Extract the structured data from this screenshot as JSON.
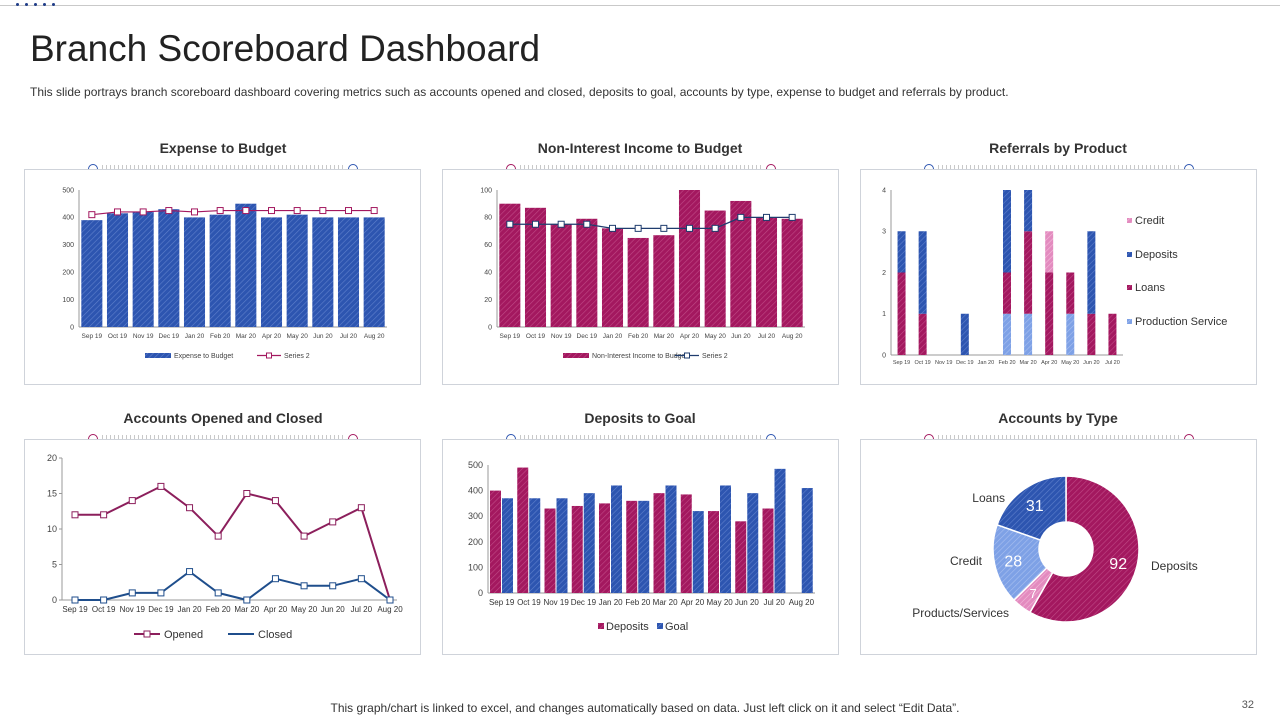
{
  "page": {
    "title": "Branch Scoreboard Dashboard",
    "subtitle": "This slide portrays branch scoreboard dashboard covering metrics such as accounts opened and closed, deposits to goal, accounts by type,  expense to budget and referrals by product.",
    "footer": "This graph/chart is linked to excel,  and changes automatically based on data. Just left click on it and select “Edit Data”.",
    "page_number": "32"
  },
  "colors": {
    "blue": "#2d55b0",
    "magenta": "#a3185f",
    "light_blue": "#7ea1e6",
    "pink": "#e38bbf",
    "navy": "#1f3c6e"
  },
  "panels": [
    {
      "title": "Expense to Budget"
    },
    {
      "title": "Non-Interest  Income to Budget"
    },
    {
      "title": "Referrals by Product"
    },
    {
      "title": "Accounts  Opened and Closed"
    },
    {
      "title": "Deposits  to Goal"
    },
    {
      "title": "Accounts  by Type"
    }
  ],
  "chart_data": [
    {
      "type": "bar",
      "title": "Expense to Budget",
      "categories": [
        "Sep 19",
        "Oct 19",
        "Nov 19",
        "Dec 19",
        "Jan 20",
        "Feb 20",
        "Mar 20",
        "Apr 20",
        "May 20",
        "Jun 20",
        "Jul 20",
        "Aug 20"
      ],
      "series": [
        {
          "name": "Expense to Budget",
          "kind": "bar",
          "values": [
            390,
            415,
            420,
            430,
            400,
            410,
            450,
            400,
            410,
            400,
            400,
            400
          ]
        },
        {
          "name": "Series 2",
          "kind": "line",
          "values": [
            410,
            420,
            420,
            425,
            420,
            425,
            425,
            425,
            425,
            425,
            425,
            425
          ]
        }
      ],
      "ylim": [
        0,
        500
      ],
      "yticks": [
        0,
        100,
        200,
        300,
        400,
        500
      ]
    },
    {
      "type": "bar",
      "title": "Non-Interest  Income to Budget",
      "categories": [
        "Sep 19",
        "Oct 19",
        "Nov 19",
        "Dec 19",
        "Jan 20",
        "Feb 20",
        "Mar 20",
        "Apr 20",
        "May 20",
        "Jun 20",
        "Jul 20",
        "Aug 20"
      ],
      "series": [
        {
          "name": "Non-Interest Income to Budget",
          "kind": "bar",
          "values": [
            90,
            87,
            75,
            79,
            72,
            65,
            67,
            100,
            85,
            92,
            80,
            79
          ]
        },
        {
          "name": "Series 2",
          "kind": "line",
          "values": [
            75,
            75,
            75,
            75,
            72,
            72,
            72,
            72,
            72,
            80,
            80,
            80
          ]
        }
      ],
      "ylim": [
        0,
        100
      ],
      "yticks": [
        0,
        20,
        40,
        60,
        80,
        100
      ]
    },
    {
      "type": "bar",
      "stacked": true,
      "title": "Referrals by Product",
      "categories": [
        "Sep 19",
        "Oct 19",
        "Nov 19",
        "Dec 19",
        "Jan 20",
        "Feb 20",
        "Mar 20",
        "Apr 20",
        "May 20",
        "Jun 20",
        "Jul 20"
      ],
      "series": [
        {
          "name": "Production Service",
          "values": [
            0,
            0,
            0,
            0,
            0,
            1,
            1,
            0,
            1,
            0,
            0
          ]
        },
        {
          "name": "Loans",
          "values": [
            2,
            1,
            0,
            0,
            0,
            1,
            2,
            2,
            1,
            1,
            1
          ]
        },
        {
          "name": "Deposits",
          "values": [
            1,
            2,
            0,
            1,
            0,
            2,
            1,
            0,
            0,
            2,
            0
          ]
        },
        {
          "name": "Credit",
          "values": [
            0,
            0,
            0,
            0,
            0,
            0,
            0,
            1,
            0,
            0,
            0
          ]
        }
      ],
      "legend": [
        "Credit",
        "Deposits",
        "Loans",
        "Production Service"
      ],
      "ylim": [
        0,
        4
      ],
      "yticks": [
        0,
        1,
        2,
        3,
        4
      ]
    },
    {
      "type": "line",
      "title": "Accounts  Opened and Closed",
      "categories": [
        "Sep 19",
        "Oct 19",
        "Nov 19",
        "Dec 19",
        "Jan 20",
        "Feb 20",
        "Mar 20",
        "Apr 20",
        "May 20",
        "Jun 20",
        "Jul 20",
        "Aug 20"
      ],
      "series": [
        {
          "name": "Opened",
          "values": [
            12,
            12,
            14,
            16,
            13,
            9,
            15,
            14,
            9,
            11,
            13,
            0
          ]
        },
        {
          "name": "Closed",
          "values": [
            0,
            0,
            1,
            1,
            4,
            1,
            0,
            3,
            2,
            2,
            3,
            0
          ]
        }
      ],
      "ylim": [
        0,
        20
      ],
      "yticks": [
        0,
        5,
        10,
        15,
        20
      ]
    },
    {
      "type": "bar",
      "title": "Deposits  to Goal",
      "categories": [
        "Sep 19",
        "Oct 19",
        "Nov 19",
        "Dec 19",
        "Jan 20",
        "Feb 20",
        "Mar 20",
        "Apr 20",
        "May 20",
        "Jun 20",
        "Jul 20",
        "Aug 20"
      ],
      "series": [
        {
          "name": "Deposits",
          "values": [
            400,
            490,
            330,
            340,
            350,
            360,
            390,
            385,
            320,
            280,
            330,
            null
          ]
        },
        {
          "name": "Goal",
          "values": [
            370,
            370,
            370,
            390,
            420,
            360,
            420,
            320,
            420,
            390,
            485,
            410
          ]
        }
      ],
      "ylim": [
        0,
        500
      ],
      "yticks": [
        0,
        100,
        200,
        300,
        400,
        500
      ]
    },
    {
      "type": "pie",
      "donut": true,
      "title": "Accounts  by Type",
      "slices": [
        {
          "label": "Deposits",
          "value": 92
        },
        {
          "label": "Products/Services",
          "value": 7
        },
        {
          "label": "Credit",
          "value": 28
        },
        {
          "label": "Loans",
          "value": 31
        }
      ]
    }
  ]
}
